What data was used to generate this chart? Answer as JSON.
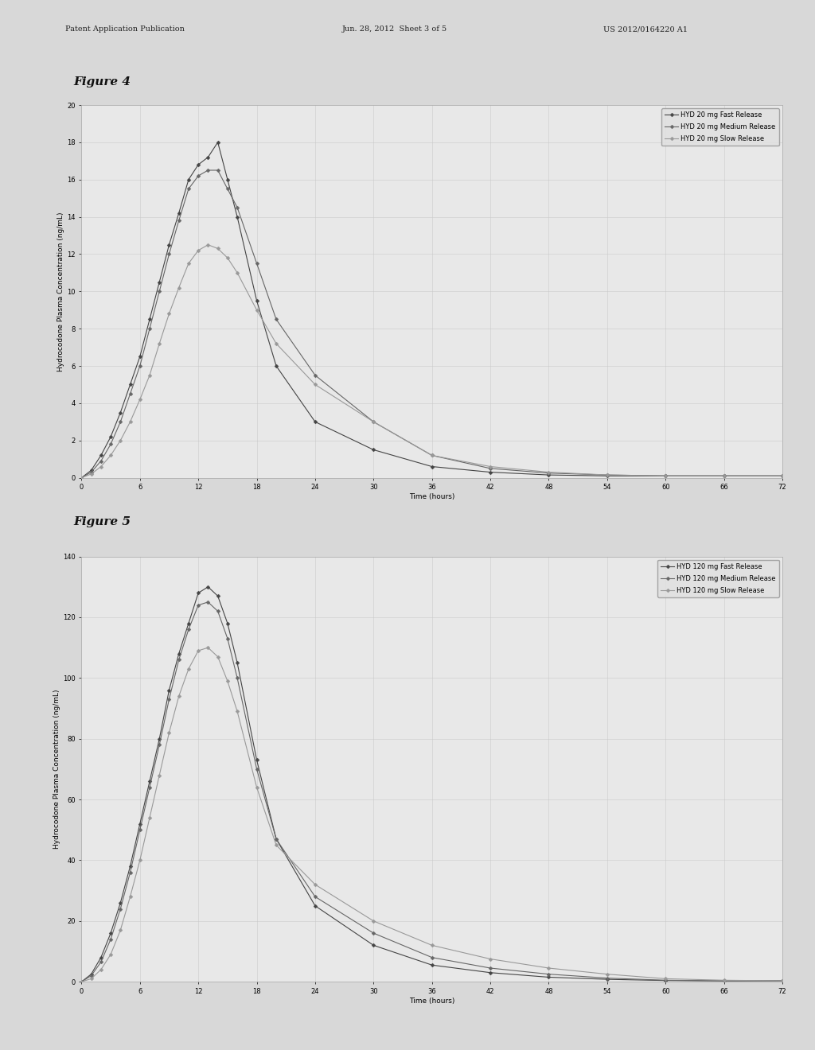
{
  "page_header_left": "Patent Application Publication",
  "page_header_mid": "Jun. 28, 2012  Sheet 3 of 5",
  "page_header_right": "US 2012/0164220 A1",
  "fig4_title": "Figure 4",
  "fig5_title": "Figure 5",
  "xlabel": "Time (hours)",
  "fig4_ylabel": "Hydrocodone Plasma Concentration (ng/mL)",
  "fig5_ylabel": "Hydrocodone Plasma Concentration (ng/mL)",
  "fig4_ylim": [
    0,
    20
  ],
  "fig5_ylim": [
    0,
    140
  ],
  "fig4_yticks": [
    0,
    2,
    4,
    6,
    8,
    10,
    12,
    14,
    16,
    18,
    20
  ],
  "fig5_yticks": [
    0,
    20,
    40,
    60,
    80,
    100,
    120,
    140
  ],
  "xticks": [
    0,
    6,
    12,
    18,
    24,
    30,
    36,
    42,
    48,
    54,
    60,
    66,
    72
  ],
  "time_points": [
    0,
    1,
    2,
    3,
    4,
    5,
    6,
    7,
    8,
    9,
    10,
    11,
    12,
    13,
    14,
    15,
    16,
    18,
    20,
    24,
    30,
    36,
    42,
    48,
    54,
    60,
    66,
    72
  ],
  "fig4_fast": [
    0,
    0.4,
    1.2,
    2.2,
    3.5,
    5.0,
    6.5,
    8.5,
    10.5,
    12.5,
    14.2,
    16.0,
    16.8,
    17.2,
    18.0,
    16.0,
    14.0,
    9.5,
    6.0,
    3.0,
    1.5,
    0.6,
    0.3,
    0.15,
    0.1,
    0.1,
    0.1,
    0.1
  ],
  "fig4_medium": [
    0,
    0.3,
    0.9,
    1.8,
    3.0,
    4.5,
    6.0,
    8.0,
    10.0,
    12.0,
    13.8,
    15.5,
    16.2,
    16.5,
    16.5,
    15.5,
    14.5,
    11.5,
    8.5,
    5.5,
    3.0,
    1.2,
    0.5,
    0.25,
    0.15,
    0.1,
    0.1,
    0.1
  ],
  "fig4_slow": [
    0,
    0.2,
    0.6,
    1.2,
    2.0,
    3.0,
    4.2,
    5.5,
    7.2,
    8.8,
    10.2,
    11.5,
    12.2,
    12.5,
    12.3,
    11.8,
    11.0,
    9.0,
    7.2,
    5.0,
    3.0,
    1.2,
    0.6,
    0.3,
    0.15,
    0.1,
    0.1,
    0.1
  ],
  "fig5_fast": [
    0,
    2.5,
    8.0,
    16.0,
    26.0,
    38.0,
    52.0,
    66.0,
    80.0,
    96.0,
    108.0,
    118.0,
    128.0,
    130.0,
    127.0,
    118.0,
    105.0,
    73.0,
    47.0,
    25.0,
    12.0,
    5.5,
    3.0,
    1.5,
    0.8,
    0.4,
    0.3,
    0.3
  ],
  "fig5_medium": [
    0,
    2.0,
    6.5,
    14.0,
    24.0,
    36.0,
    50.0,
    64.0,
    78.0,
    93.0,
    106.0,
    116.0,
    124.0,
    125.0,
    122.0,
    113.0,
    100.0,
    70.0,
    47.0,
    28.0,
    16.0,
    8.0,
    4.5,
    2.5,
    1.2,
    0.5,
    0.3,
    0.3
  ],
  "fig5_slow": [
    0,
    1.0,
    4.0,
    9.0,
    17.0,
    28.0,
    40.0,
    54.0,
    68.0,
    82.0,
    94.0,
    103.0,
    109.0,
    110.0,
    107.0,
    99.0,
    89.0,
    64.0,
    45.0,
    32.0,
    20.0,
    12.0,
    7.5,
    4.5,
    2.5,
    1.0,
    0.5,
    0.3
  ],
  "line_color_fast": "#444444",
  "line_color_medium": "#666666",
  "line_color_slow": "#999999",
  "marker": "D",
  "marker_size": 2.5,
  "line_width": 0.8,
  "fig4_legend": [
    "HYD 20 mg Fast Release",
    "HYD 20 mg Medium Release",
    "HYD 20 mg Slow Release"
  ],
  "fig5_legend": [
    "HYD 120 mg Fast Release",
    "HYD 120 mg Medium Release",
    "HYD 120 mg Slow Release"
  ],
  "page_bg": "#d8d8d8",
  "chart_bg": "#e8e8e8",
  "chart_border": "#aaaaaa",
  "grid_color": "#c8c8c8",
  "title_font_size": 11,
  "header_font_size": 7,
  "axis_label_font_size": 6.5,
  "tick_font_size": 6,
  "legend_font_size": 6
}
